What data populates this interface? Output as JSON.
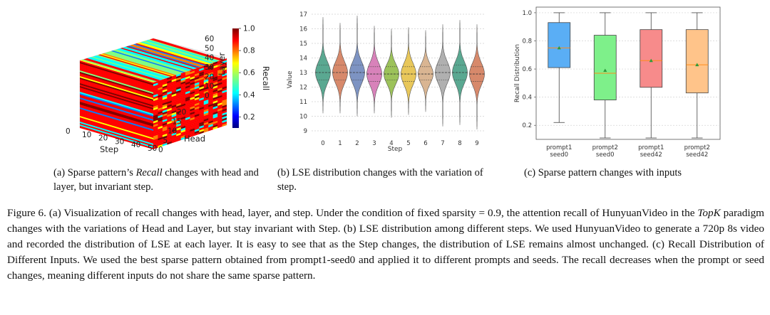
{
  "colors": {
    "violin": [
      "#5aa891",
      "#d7896b",
      "#7d93c2",
      "#d882ba",
      "#9cc25a",
      "#e8c75a",
      "#d9b592",
      "#b0b0b0",
      "#5aa891",
      "#d7896b"
    ],
    "box": [
      "#5aaef5",
      "#7ef08a",
      "#f78b8b",
      "#ffc48a"
    ],
    "jet": [
      "#00007f",
      "#0000ff",
      "#007fff",
      "#00ffff",
      "#7fff7f",
      "#ffff00",
      "#ff7f00",
      "#ff0000",
      "#7f0000"
    ]
  },
  "panel_a": {
    "step_label": "Step",
    "head_label": "Head",
    "layer_label": "Layer",
    "colorbar_label": "Recall",
    "step_ticks": [
      "0",
      "10",
      "20",
      "30",
      "40",
      "50"
    ],
    "head_ticks": [
      "0",
      "5",
      "10",
      "15",
      "20"
    ],
    "layer_ticks": [
      "0",
      "10",
      "20",
      "30",
      "40",
      "50",
      "60"
    ],
    "colorbar_ticks": [
      "1.0",
      "0.8",
      "0.6",
      "0.4",
      "0.2"
    ]
  },
  "chart_data": [
    {
      "type": "violin",
      "xlabel": "Step",
      "ylabel": "Value",
      "categories": [
        "0",
        "1",
        "2",
        "3",
        "4",
        "5",
        "6",
        "7",
        "8",
        "9"
      ],
      "y_ticks": [
        "17",
        "16",
        "15",
        "14",
        "13",
        "12",
        "11",
        "10",
        "9"
      ],
      "ylim": [
        9,
        17
      ],
      "series": [
        {
          "min": 10.2,
          "max": 16.8,
          "q1": 12.5,
          "median": 13.0,
          "q3": 13.5
        },
        {
          "min": 10.2,
          "max": 16.4,
          "q1": 12.5,
          "median": 13.0,
          "q3": 13.5
        },
        {
          "min": 10.0,
          "max": 16.9,
          "q1": 12.5,
          "median": 13.0,
          "q3": 13.5
        },
        {
          "min": 10.2,
          "max": 16.2,
          "q1": 12.4,
          "median": 12.9,
          "q3": 13.4
        },
        {
          "min": 9.9,
          "max": 16.0,
          "q1": 12.5,
          "median": 12.9,
          "q3": 13.4
        },
        {
          "min": 10.1,
          "max": 16.1,
          "q1": 12.4,
          "median": 12.9,
          "q3": 13.4
        },
        {
          "min": 10.3,
          "max": 15.9,
          "q1": 12.5,
          "median": 12.9,
          "q3": 13.4
        },
        {
          "min": 9.3,
          "max": 16.3,
          "q1": 12.5,
          "median": 13.0,
          "q3": 13.5
        },
        {
          "min": 9.4,
          "max": 16.6,
          "q1": 12.5,
          "median": 13.0,
          "q3": 13.5
        },
        {
          "min": 9.1,
          "max": 16.3,
          "q1": 12.4,
          "median": 12.9,
          "q3": 13.4
        }
      ],
      "grid": true
    },
    {
      "type": "box",
      "ylabel": "Recall Distribution",
      "categories": [
        [
          "prompt1",
          "seed0"
        ],
        [
          "prompt2",
          "seed0"
        ],
        [
          "prompt1",
          "seed42"
        ],
        [
          "prompt2",
          "seed42"
        ]
      ],
      "y_ticks": [
        "1.0",
        "0.8",
        "0.6",
        "0.4",
        "0.2"
      ],
      "ylim": [
        0.1,
        1.0
      ],
      "series": [
        {
          "min": 0.22,
          "q1": 0.61,
          "median": 0.75,
          "mean": 0.75,
          "q3": 0.93,
          "max": 1.0
        },
        {
          "min": 0.11,
          "q1": 0.38,
          "median": 0.57,
          "mean": 0.59,
          "q3": 0.84,
          "max": 1.0
        },
        {
          "min": 0.11,
          "q1": 0.47,
          "median": 0.66,
          "mean": 0.66,
          "q3": 0.88,
          "max": 1.0
        },
        {
          "min": 0.11,
          "q1": 0.43,
          "median": 0.63,
          "mean": 0.63,
          "q3": 0.88,
          "max": 1.0
        }
      ],
      "grid": true
    }
  ],
  "subcaptions": {
    "a_pre": "(a)  Sparse pattern’s ",
    "a_em": "Recall",
    "a_post": " changes with head and layer, but invariant step.",
    "b": "(b) LSE distribution changes with the variation of step.",
    "c": "(c)  Sparse pattern changes with inputs"
  },
  "caption": {
    "p1": "Figure 6. (a) Visualization of recall changes with head, layer, and step. Under the condition of fixed sparsity = 0.9, the attention recall of HunyuanVideo in the ",
    "em": "TopK",
    "p2": " paradigm changes with the variations of Head and Layer, but stay invariant with Step. (b) LSE distribution among different steps. We used HunyuanVideo to generate a 720p 8s video and recorded the distribution of LSE at each layer. It is easy to see that as the Step changes, the distribution of LSE remains almost unchanged. (c) Recall Distribution of Different Inputs. We used the best sparse pattern obtained from prompt1-seed0 and applied it to different prompts and seeds. The recall decreases when the prompt or seed changes, meaning different inputs do not share the same sparse pattern."
  }
}
